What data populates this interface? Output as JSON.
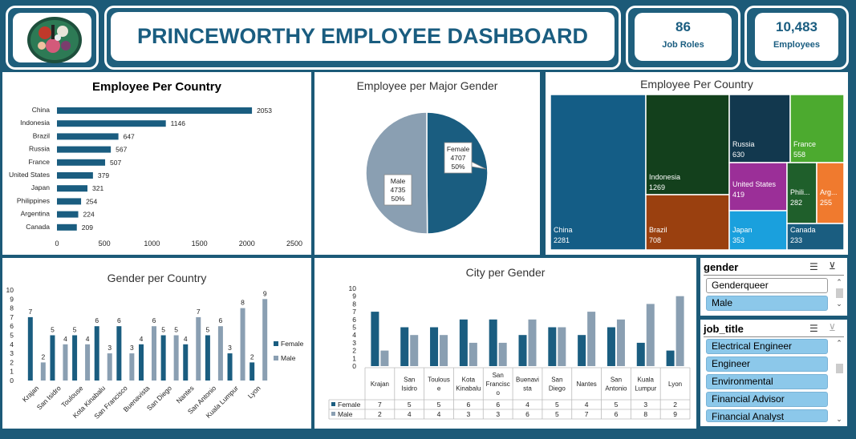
{
  "header": {
    "title": "PRINCEWORTHY EMPLOYEE DASHBOARD",
    "kpi_roles_value": "86",
    "kpi_roles_label": "Job Roles",
    "kpi_employees_value": "10,483",
    "kpi_employees_label": "Employees"
  },
  "colors": {
    "primary": "#1a5d80",
    "frame": "#1c5a78",
    "male": "#8a9fb2"
  },
  "chart_data": [
    {
      "type": "bar",
      "title": "Employee Per Country",
      "orientation": "horizontal",
      "categories": [
        "China",
        "Indonesia",
        "Brazil",
        "Russia",
        "France",
        "United States",
        "Japan",
        "Philippines",
        "Argentina",
        "Canada"
      ],
      "values": [
        2053,
        1146,
        647,
        567,
        507,
        379,
        321,
        254,
        224,
        209
      ],
      "xticks": [
        "0",
        "500",
        "1000",
        "1500",
        "2000",
        "2500"
      ],
      "xlim": [
        0,
        2500
      ]
    },
    {
      "type": "pie",
      "title": "Employee per Major Gender",
      "slices": [
        {
          "label": "Female",
          "value": 4707,
          "percent": "50%",
          "color": "#1a5d80"
        },
        {
          "label": "Male",
          "value": 4735,
          "percent": "50%",
          "color": "#8a9fb2"
        }
      ]
    },
    {
      "type": "treemap",
      "title": "Employee Per Country",
      "items": [
        {
          "label": "China",
          "value": 2281,
          "color": "#145d86"
        },
        {
          "label": "Indonesia",
          "value": 1269,
          "color": "#13401c"
        },
        {
          "label": "Brazil",
          "value": 708,
          "color": "#9a400f"
        },
        {
          "label": "Russia",
          "value": 630,
          "color": "#12384e"
        },
        {
          "label": "France",
          "value": 558,
          "color": "#4caa2f"
        },
        {
          "label": "United States",
          "value": 419,
          "color": "#9b2f98"
        },
        {
          "label": "Japan",
          "value": 353,
          "color": "#1aa0dd"
        },
        {
          "label": "Phili...",
          "value": 282,
          "color": "#1f5f2b"
        },
        {
          "label": "Arg...",
          "value": 255,
          "color": "#f07a2e"
        },
        {
          "label": "Canada",
          "value": 233,
          "color": "#1a5d80"
        }
      ]
    },
    {
      "type": "bar",
      "title": "Gender per Country",
      "categories": [
        "Krajan",
        "San Isidro",
        "Toulouse",
        "Kota Kinabalu",
        "San Francisco",
        "Buenavista",
        "San Diego",
        "Nantes",
        "San Antonio",
        "Kuala Lumpur",
        "Lyon"
      ],
      "series": [
        {
          "name": "Female",
          "values": [
            7,
            5,
            5,
            6,
            6,
            4,
            5,
            4,
            5,
            3,
            2
          ],
          "color": "#1a5d80"
        },
        {
          "name": "Male",
          "values": [
            2,
            4,
            4,
            3,
            3,
            6,
            5,
            7,
            6,
            8,
            9
          ],
          "color": "#8a9fb2"
        }
      ],
      "yticks": [
        "0",
        "1",
        "2",
        "3",
        "4",
        "5",
        "6",
        "7",
        "8",
        "9",
        "10"
      ],
      "ylim": [
        0,
        10
      ],
      "legend": "right"
    },
    {
      "type": "bar",
      "title": "City per Gender",
      "categories": [
        "Krajan",
        "San Isidro",
        "Toulous e",
        "Kota Kinabalu",
        "San Francisc o",
        "Buenavi sta",
        "San Diego",
        "Nantes",
        "San Antonio",
        "Kuala Lumpur",
        "Lyon"
      ],
      "series": [
        {
          "name": "Female",
          "values": [
            7,
            5,
            5,
            6,
            6,
            4,
            5,
            4,
            5,
            3,
            2
          ],
          "color": "#1a5d80"
        },
        {
          "name": "Male",
          "values": [
            2,
            4,
            4,
            3,
            3,
            6,
            5,
            7,
            6,
            8,
            9
          ],
          "color": "#8a9fb2"
        }
      ],
      "yticks": [
        "0",
        "1",
        "2",
        "3",
        "4",
        "5",
        "6",
        "7",
        "8",
        "9",
        "10"
      ],
      "ylim": [
        0,
        10
      ],
      "data_table": true
    }
  ],
  "slicers": {
    "gender": {
      "header": "gender",
      "items": [
        "Genderqueer",
        "Male"
      ],
      "selected": [
        false,
        true
      ]
    },
    "job_title": {
      "header": "job_title",
      "items": [
        "Electrical Engineer",
        "Engineer",
        "Environmental",
        "Financial Advisor",
        "Financial Analyst"
      ],
      "selected": [
        true,
        true,
        true,
        true,
        true
      ]
    }
  }
}
